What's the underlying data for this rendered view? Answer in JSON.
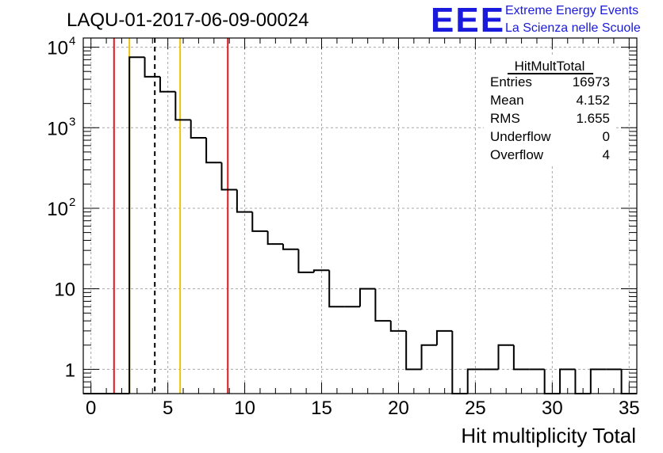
{
  "title": "LAQU-01-2017-06-09-00024",
  "logo": {
    "text": "EEE",
    "line1": "Extreme Energy Events",
    "line2": "La Scienza nelle Scuole",
    "color": "#1a1adc"
  },
  "stats": {
    "name": "HitMultTotal",
    "rows": [
      {
        "label": "Entries",
        "value": "16973"
      },
      {
        "label": "Mean",
        "value": "4.152"
      },
      {
        "label": "RMS",
        "value": "1.655"
      },
      {
        "label": "Underflow",
        "value": "0"
      },
      {
        "label": "Overflow",
        "value": "4"
      }
    ]
  },
  "chart_data": {
    "type": "histogram",
    "xlabel": "Hit multiplicity Total",
    "ylabel": "",
    "xlim": [
      -0.5,
      35.5
    ],
    "ylim": [
      0.5,
      13000
    ],
    "yscale": "log",
    "grid": true,
    "bin_width": 1,
    "x_ticks": [
      "0",
      "5",
      "10",
      "15",
      "20",
      "25",
      "30",
      "35"
    ],
    "x_tick_values": [
      0,
      5,
      10,
      15,
      20,
      25,
      30,
      35
    ],
    "y_ticks": [
      {
        "value": 1,
        "label": "1",
        "sup": ""
      },
      {
        "value": 10,
        "label": "10",
        "sup": ""
      },
      {
        "value": 100,
        "label": "10",
        "sup": "2"
      },
      {
        "value": 1000,
        "label": "10",
        "sup": "3"
      },
      {
        "value": 10000,
        "label": "10",
        "sup": "4"
      }
    ],
    "bin_centers": [
      0,
      1,
      2,
      3,
      4,
      5,
      6,
      7,
      8,
      9,
      10,
      11,
      12,
      13,
      14,
      15,
      16,
      17,
      18,
      19,
      20,
      21,
      22,
      23,
      24,
      25,
      26,
      27,
      28,
      29,
      30,
      31,
      32,
      33,
      34,
      35
    ],
    "counts": [
      0,
      0,
      0,
      7500,
      4300,
      2800,
      1250,
      750,
      370,
      170,
      90,
      52,
      36,
      31,
      16,
      17,
      6,
      6,
      10,
      4,
      3,
      1,
      2,
      3,
      0,
      1,
      1,
      2,
      1,
      1,
      0,
      1,
      0,
      1,
      1,
      0
    ],
    "vertical_lines": [
      {
        "x": 1.5,
        "color": "#e8141c",
        "style": "solid"
      },
      {
        "x": 2.5,
        "color": "#f0c200",
        "style": "solid"
      },
      {
        "x": 4.152,
        "color": "#000000",
        "style": "dashed"
      },
      {
        "x": 5.8,
        "color": "#f0c200",
        "style": "solid"
      },
      {
        "x": 8.9,
        "color": "#e8141c",
        "style": "solid"
      }
    ]
  }
}
